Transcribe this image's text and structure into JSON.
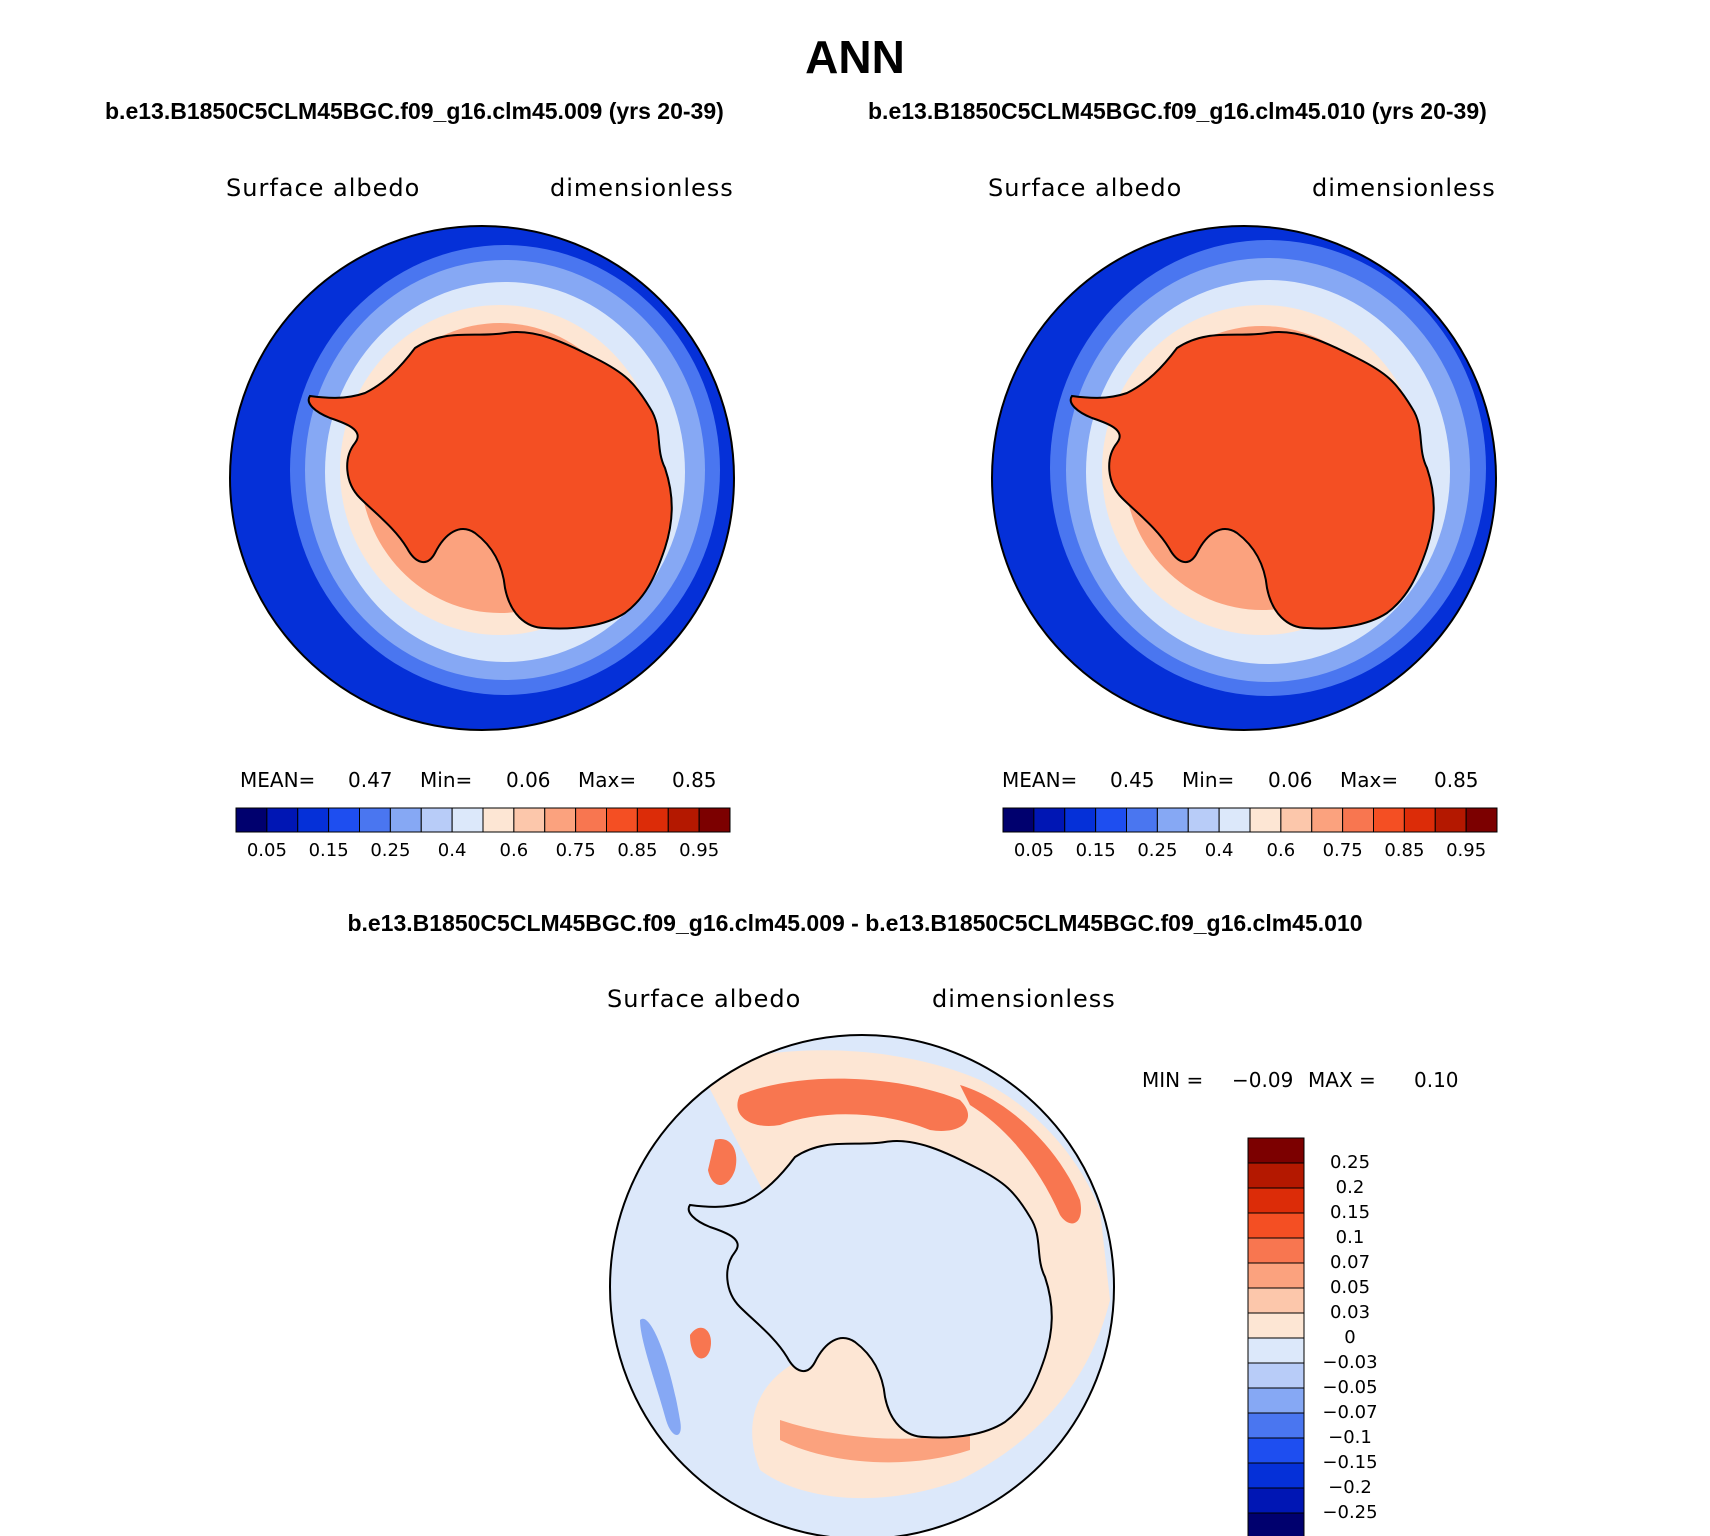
{
  "season": "ANN",
  "cases": {
    "left": "b.e13.B1850C5CLM45BGC.f09_g16.clm45.009 (yrs 20-39)",
    "right": "b.e13.B1850C5CLM45BGC.f09_g16.clm45.010 (yrs 20-39)",
    "diff": "b.e13.B1850C5CLM45BGC.f09_g16.clm45.009 - b.e13.B1850C5CLM45BGC.f09_g16.clm45.010"
  },
  "panels": [
    {
      "variable": "Surface albedo",
      "units": "dimensionless",
      "mean_label": "MEAN=",
      "mean": "0.47",
      "min_label": "Min=",
      "min": "0.06",
      "max_label": "Max=",
      "max": "0.85"
    },
    {
      "variable": "Surface albedo",
      "units": "dimensionless",
      "mean_label": "MEAN=",
      "mean": "0.45",
      "min_label": "Min=",
      "min": "0.06",
      "max_label": "Max=",
      "max": "0.85"
    }
  ],
  "diff_panel": {
    "variable": "Surface albedo",
    "units": "dimensionless",
    "min_label": "MIN =",
    "min": "−0.09",
    "max_label": "MAX =",
    "max": "0.10"
  },
  "abs_colorbar": {
    "colors": [
      "#00006e",
      "#0016b4",
      "#0530d8",
      "#1e4ef0",
      "#4a76f0",
      "#86a8f4",
      "#b8ccf8",
      "#dce8fa",
      "#fde6d4",
      "#fcc7ab",
      "#fba27e",
      "#f87650",
      "#f44f23",
      "#dc2c08",
      "#b41800",
      "#7c0000"
    ],
    "tick_labels": [
      "0.05",
      "0.15",
      "0.25",
      "0.4",
      "0.6",
      "0.75",
      "0.85",
      "0.95"
    ]
  },
  "diff_colorbar": {
    "colors_bottom_to_top": [
      "#00006e",
      "#0016b4",
      "#0530d8",
      "#1e4ef0",
      "#4a76f0",
      "#86a8f4",
      "#b8ccf8",
      "#dce8fa",
      "#fde6d4",
      "#fcc7ab",
      "#fba27e",
      "#f87650",
      "#f44f23",
      "#dc2c08",
      "#b41800",
      "#7c0000"
    ],
    "tick_labels_top_to_bottom": [
      "0.25",
      "0.2",
      "0.15",
      "0.1",
      "0.07",
      "0.05",
      "0.03",
      "0",
      "−0.03",
      "−0.05",
      "−0.07",
      "−0.1",
      "−0.15",
      "−0.2",
      "−0.25"
    ]
  },
  "colors": {
    "ocean_dark": "#0530d8",
    "ocean_mid": "#4a76f0",
    "ocean_light": "#86a8f4",
    "ice_pale": "#dce8fa",
    "ice_edge": "#fde6d4",
    "ice_mid": "#fba27e",
    "continent": "#f44f23",
    "diff_neutral_pos": "#fde6d4",
    "diff_neutral_neg": "#dce8fa",
    "diff_pos": "#f87650",
    "diff_neg": "#4a76f0"
  }
}
